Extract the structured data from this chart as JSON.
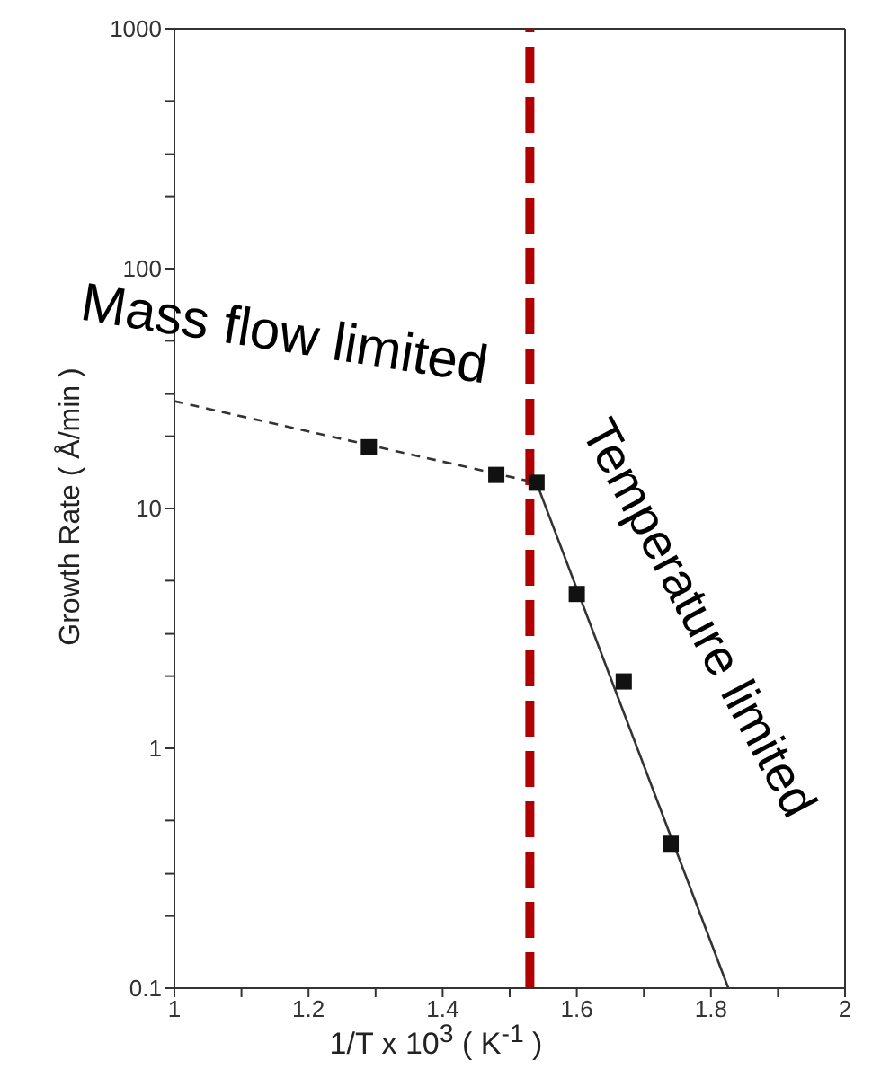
{
  "chart_data": {
    "type": "scatter",
    "xlabel": "1/T x 10$^{3}$ ( K$^{-1}$ )",
    "ylabel": "Growth Rate ( Å/min )",
    "log": "y",
    "xlim": [
      1,
      2
    ],
    "xticks": [
      1,
      {
        "value": 1.1,
        "label": null
      },
      1.2,
      {
        "value": 1.3,
        "label": null
      },
      1.4,
      {
        "value": 1.5,
        "label": null
      },
      1.6,
      {
        "value": 1.7,
        "label": null
      },
      1.8,
      {
        "value": 1.9,
        "label": null
      },
      2
    ],
    "ylim": [
      0.1,
      1000
    ],
    "yticks": [
      0.1,
      {
        "value": 0.2,
        "label": null
      },
      {
        "value": 0.3,
        "label": null
      },
      {
        "value": 0.5,
        "label": null
      },
      1,
      {
        "value": 2,
        "label": null
      },
      {
        "value": 3,
        "label": null
      },
      {
        "value": 5,
        "label": null
      },
      10,
      {
        "value": 20,
        "label": null
      },
      {
        "value": 30,
        "label": null
      },
      {
        "value": 50,
        "label": null
      },
      100,
      {
        "value": 200,
        "label": null
      },
      {
        "value": 300,
        "label": null
      },
      {
        "value": 500,
        "label": null
      },
      1000
    ],
    "series": [
      {
        "color": "#111111",
        "marker": "square",
        "x": [
          1.29,
          1.48,
          1.54,
          1.6,
          1.67,
          1.74
        ],
        "values": [
          18,
          13.8,
          12.8,
          4.4,
          1.9,
          0.4
        ]
      },
      {
        "type": "line",
        "color": "#333333",
        "line_style": "dashed",
        "marker": "none",
        "x": [
          1,
          1.54
        ],
        "values": [
          28,
          12.8
        ]
      },
      {
        "type": "line",
        "color": "#333333",
        "line_style": "solid",
        "marker": "none",
        "x": [
          1.54,
          1.826
        ],
        "values": [
          12.8,
          0.1
        ]
      }
    ],
    "ref_lines": [
      {
        "axis": "x",
        "value": 1.53,
        "color": "#b00000",
        "line_style": "dashed"
      }
    ],
    "annotations": [
      "Mass flow limited",
      "Temperature limited"
    ]
  }
}
